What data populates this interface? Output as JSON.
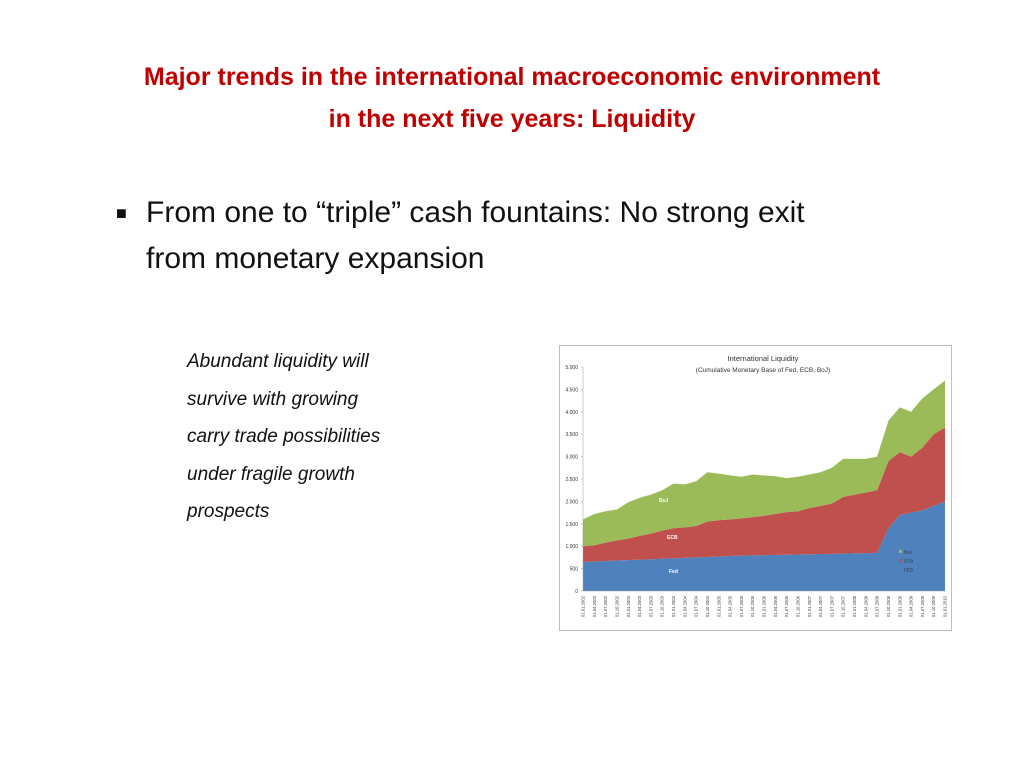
{
  "slide": {
    "title_lines": [
      "Major trends in the international macroeconomic environment",
      "in the next five years:  Liquidity"
    ],
    "bullet_lines": [
      "From one to “triple” cash fountains: No strong exit",
      "from monetary expansion"
    ],
    "note_lines": [
      "Abundant liquidity will",
      "survive with growing",
      "carry trade possibilities",
      "under fragile growth",
      "prospects"
    ]
  },
  "chart_data": {
    "type": "stacked_area",
    "title": "International Liquidity",
    "subtitle": "(Cumulative Monetary Base of Fed, ECB, BoJ)",
    "categories": [
      "01.01.2002",
      "01.04.2002",
      "01.07.2002",
      "01.10.2002",
      "01.01.2003",
      "01.04.2003",
      "01.07.2003",
      "01.10.2003",
      "01.01.2004",
      "01.04.2004",
      "01.07.2004",
      "01.10.2004",
      "01.01.2005",
      "01.04.2005",
      "01.07.2005",
      "01.10.2005",
      "01.01.2006",
      "01.04.2006",
      "01.07.2006",
      "01.10.2006",
      "01.01.2007",
      "01.04.2007",
      "01.07.2007",
      "01.10.2007",
      "01.01.2008",
      "01.04.2008",
      "01.07.2008",
      "01.10.2008",
      "01.01.2009",
      "01.04.2009",
      "01.07.2009",
      "01.10.2009",
      "01.01.2010"
    ],
    "series": [
      {
        "name": "FED",
        "color": "#4f81bd",
        "values": [
          650,
          660,
          670,
          680,
          690,
          700,
          710,
          720,
          730,
          740,
          750,
          760,
          770,
          780,
          790,
          795,
          800,
          805,
          810,
          815,
          820,
          825,
          830,
          835,
          840,
          845,
          850,
          1400,
          1700,
          1750,
          1800,
          1900,
          2000
        ]
      },
      {
        "name": "ECB",
        "color": "#c0504d",
        "values": [
          350,
          360,
          410,
          450,
          480,
          530,
          570,
          630,
          670,
          680,
          700,
          790,
          810,
          820,
          830,
          855,
          880,
          915,
          950,
          965,
          1030,
          1075,
          1120,
          1265,
          1310,
          1355,
          1400,
          1500,
          1400,
          1250,
          1400,
          1600,
          1650
        ]
      },
      {
        "name": "BoJ",
        "color": "#9bbb59",
        "values": [
          600,
          700,
          700,
          690,
          810,
          850,
          870,
          900,
          1000,
          960,
          1000,
          1100,
          1040,
          980,
          930,
          950,
          900,
          840,
          760,
          770,
          750,
          750,
          800,
          850,
          800,
          750,
          750,
          900,
          1000,
          1000,
          1100,
          1000,
          1050
        ]
      }
    ],
    "annotations": [
      "Fed",
      "ECB",
      "BoJ"
    ],
    "ylim": [
      0,
      5000
    ],
    "yticks": [
      0,
      500,
      {
        "value": 1000,
        "label": "1.000"
      },
      {
        "value": 1500,
        "label": "1.500"
      },
      {
        "value": 2000,
        "label": "2.000"
      },
      {
        "value": 2500,
        "label": "2.500"
      },
      {
        "value": 3000,
        "label": "3.000"
      },
      {
        "value": 3500,
        "label": "3.500"
      },
      {
        "value": 4000,
        "label": "4.000"
      },
      {
        "value": 4500,
        "label": "4.500"
      },
      {
        "value": 5000,
        "label": "5.000"
      }
    ],
    "legend": "right"
  }
}
